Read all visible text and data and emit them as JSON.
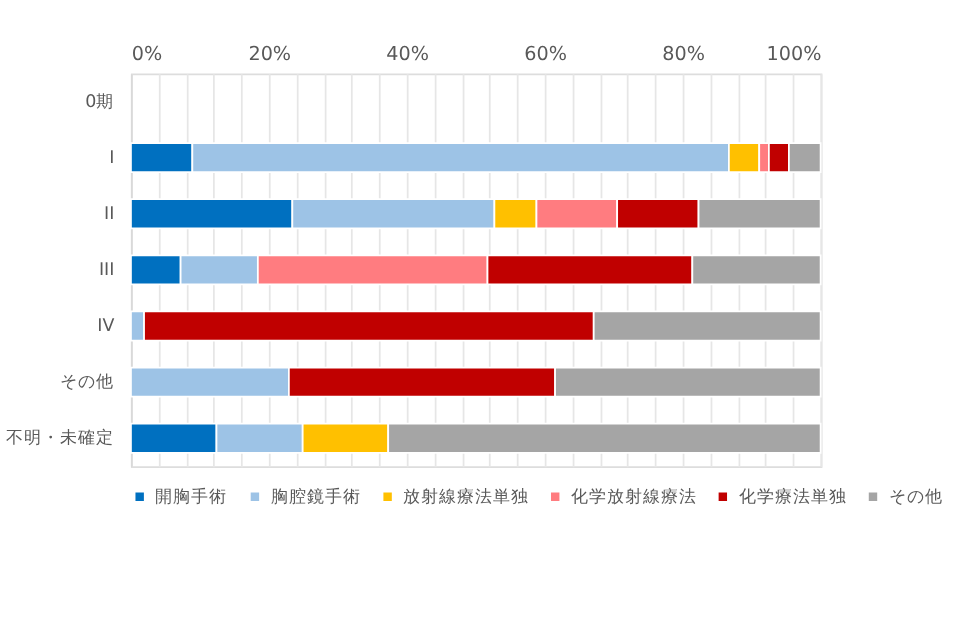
{
  "chart_data": {
    "type": "bar",
    "orientation": "horizontal",
    "stacked": true,
    "categories": [
      "0期",
      "I",
      "II",
      "III",
      "IV",
      "その他",
      "不明・未確定"
    ],
    "series": [
      {
        "name": "開胸手術",
        "color": "#0070c0",
        "values": [
          null,
          8.9,
          23.4,
          7.2,
          null,
          null,
          12.4
        ]
      },
      {
        "name": "胸腔鏡手術",
        "color": "#9dc3e6",
        "values": [
          null,
          77.8,
          29.3,
          11.2,
          1.9,
          22.9,
          12.5
        ]
      },
      {
        "name": "放射線療法単独",
        "color": "#ffc000",
        "values": [
          null,
          4.4,
          6.1,
          null,
          null,
          null,
          12.4
        ]
      },
      {
        "name": "化学放射線療法",
        "color": "#ff7c80",
        "values": [
          null,
          1.4,
          11.7,
          33.3,
          null,
          null,
          null
        ]
      },
      {
        "name": "化学療法単独",
        "color": "#c00000",
        "values": [
          null,
          2.9,
          11.8,
          29.7,
          65.2,
          38.6,
          null
        ]
      },
      {
        "name": "その他",
        "color": "#a5a5a5",
        "values": [
          null,
          4.6,
          17.7,
          18.6,
          32.9,
          38.5,
          62.7
        ]
      }
    ],
    "xlim": [
      0,
      100
    ],
    "xticks": [
      {
        "value": 0,
        "label": "0%"
      },
      {
        "value": 4,
        "label": null
      },
      {
        "value": 8,
        "label": null
      },
      {
        "value": 12,
        "label": null
      },
      {
        "value": 16,
        "label": null
      },
      {
        "value": 20,
        "label": "20%"
      },
      {
        "value": 24,
        "label": null
      },
      {
        "value": 28,
        "label": null
      },
      {
        "value": 32,
        "label": null
      },
      {
        "value": 36,
        "label": null
      },
      {
        "value": 40,
        "label": "40%"
      },
      {
        "value": 44,
        "label": null
      },
      {
        "value": 48,
        "label": null
      },
      {
        "value": 52,
        "label": null
      },
      {
        "value": 56,
        "label": null
      },
      {
        "value": 60,
        "label": "60%"
      },
      {
        "value": 64,
        "label": null
      },
      {
        "value": 68,
        "label": null
      },
      {
        "value": 72,
        "label": null
      },
      {
        "value": 76,
        "label": null
      },
      {
        "value": 80,
        "label": "80%"
      },
      {
        "value": 84,
        "label": null
      },
      {
        "value": 88,
        "label": null
      },
      {
        "value": 92,
        "label": null
      },
      {
        "value": 96,
        "label": null
      },
      {
        "value": 100,
        "label": "100%"
      }
    ],
    "grid": true,
    "legend": "bottom"
  }
}
